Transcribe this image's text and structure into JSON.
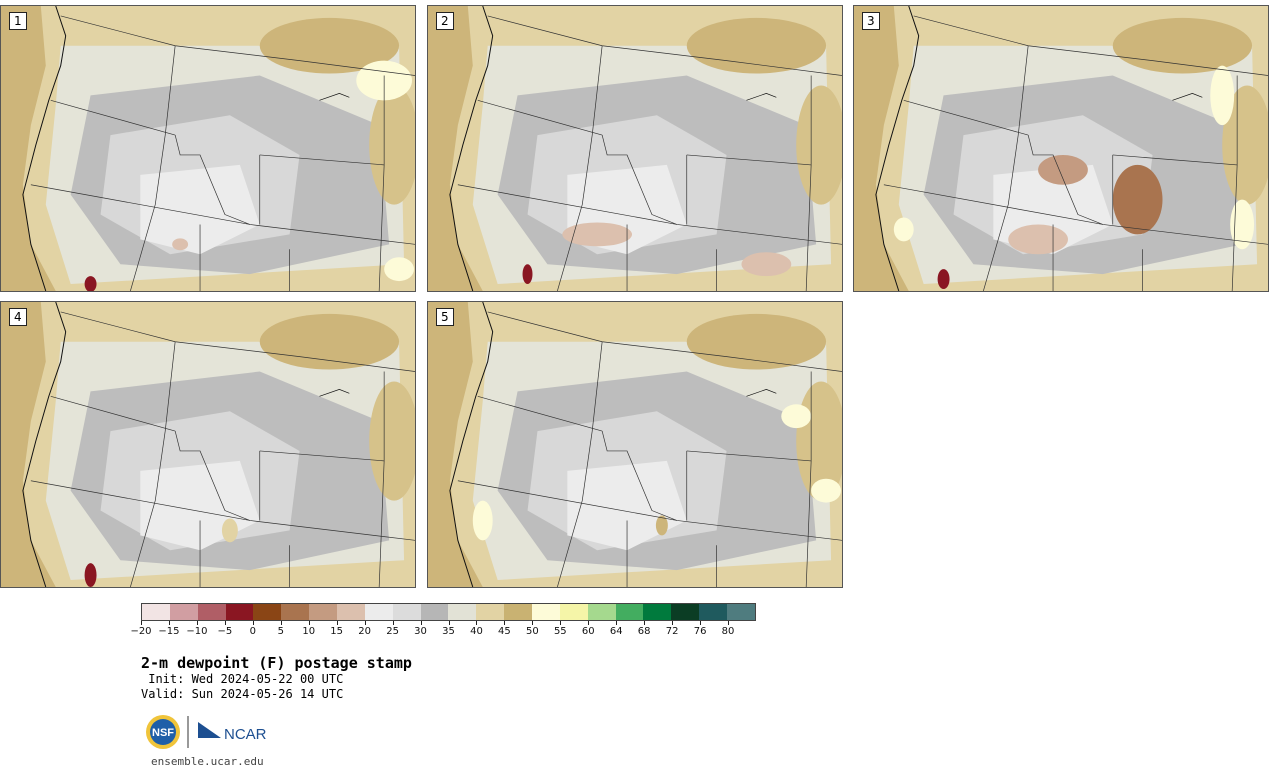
{
  "stamps": [
    {
      "label": "1"
    },
    {
      "label": "2"
    },
    {
      "label": "3"
    },
    {
      "label": "4"
    },
    {
      "label": "5"
    }
  ],
  "colorbar": {
    "colors": [
      "#f2e4e4",
      "#d19ea2",
      "#b05e66",
      "#8a1622",
      "#8a4515",
      "#a9744f",
      "#c49b81",
      "#dcc0ae",
      "#ececec",
      "#dcdcdc",
      "#b6b6b6",
      "#e2e2d6",
      "#e2d3a4",
      "#c9b272",
      "#fdfbd8",
      "#f5f5a8",
      "#a5d98e",
      "#43ad60",
      "#007a3d",
      "#0b3d24",
      "#1f5a5e",
      "#4f7c7f"
    ],
    "tick_labels": [
      "−20",
      "−15",
      "−10",
      "−5",
      "0",
      "5",
      "10",
      "15",
      "20",
      "25",
      "30",
      "35",
      "40",
      "45",
      "50",
      "55",
      "60",
      "64",
      "68",
      "72",
      "76",
      "80"
    ]
  },
  "title": "2-m dewpoint (F) postage stamp",
  "init_text": " Init: Wed 2024-05-22 00 UTC",
  "valid_text": "Valid: Sun 2024-05-26 14 UTC",
  "logos": {
    "nsf": "NSF",
    "ncar": "NCAR"
  },
  "url": "ensemble.ucar.edu"
}
